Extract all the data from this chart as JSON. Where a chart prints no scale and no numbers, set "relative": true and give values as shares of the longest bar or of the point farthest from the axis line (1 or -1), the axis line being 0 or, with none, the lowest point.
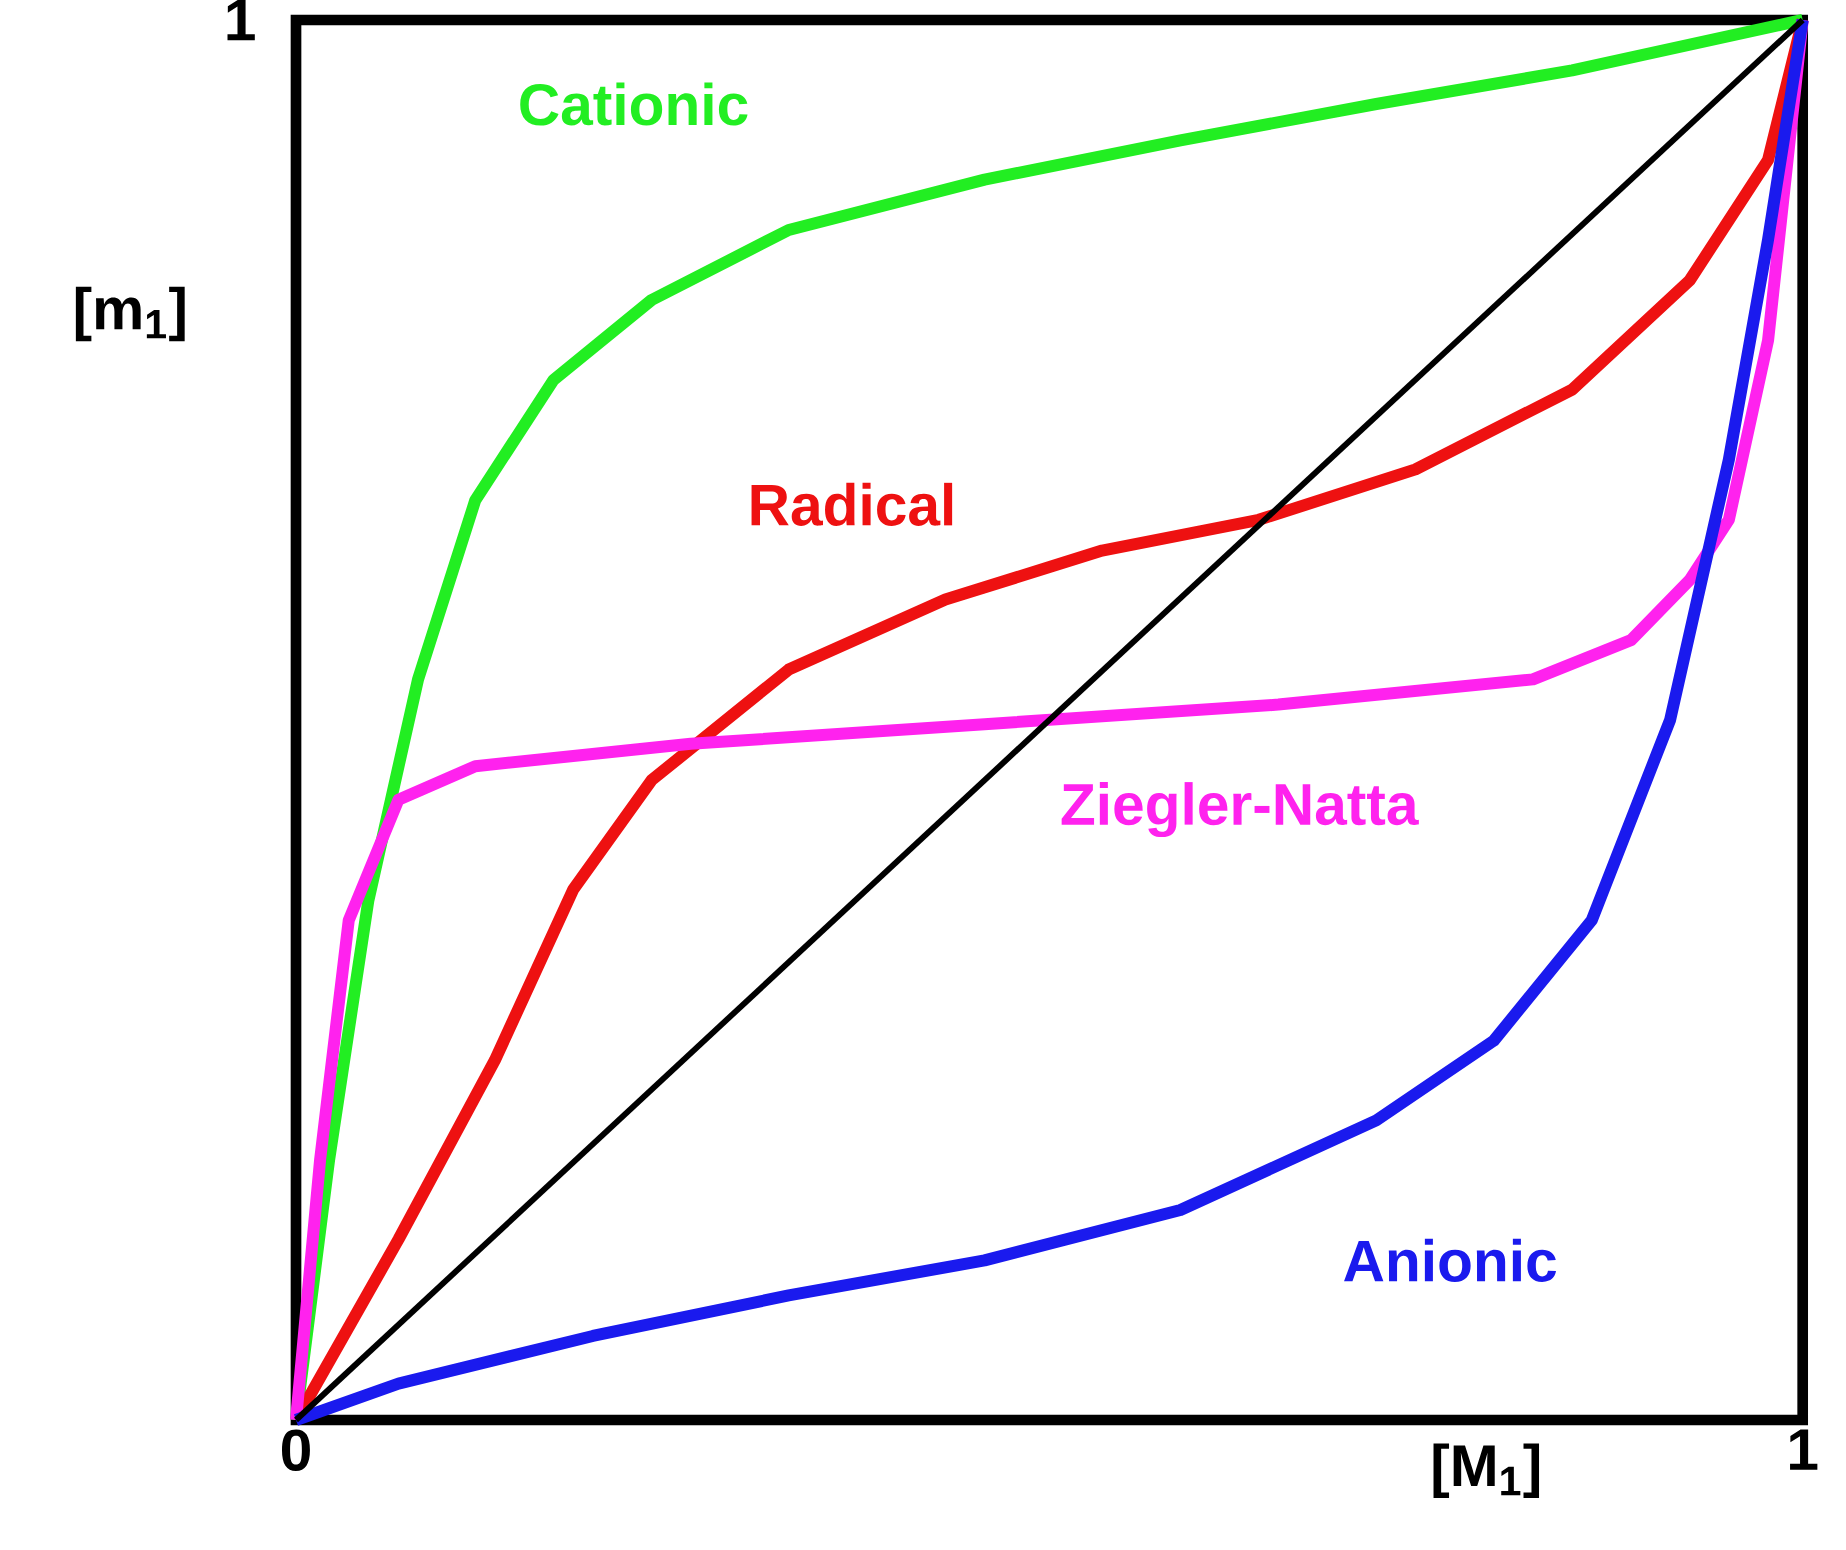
{
  "chart_data": {
    "type": "line",
    "xlabel": "[M$_{1}$]",
    "ylabel": "[m$_{1}$]",
    "xlim": [
      0,
      1
    ],
    "relative": true,
    "annotations": [
      "1"
    ],
    "xticks": [
      {
        "value": 0,
        "label": "0"
      },
      {
        "value": 1,
        "label": "1"
      }
    ],
    "marker": "none",
    "line_style": "solid",
    "series": [
      {
        "name": "Cationic",
        "color": "#22ee22",
        "x": [
          0,
          0.022,
          0.048,
          0.081,
          0.119,
          0.171,
          0.236,
          0.327,
          0.457,
          0.587,
          0.717,
          0.847,
          1
        ],
        "values": [
          0,
          0.186,
          0.371,
          0.529,
          0.657,
          0.743,
          0.8,
          0.85,
          0.886,
          0.914,
          0.94,
          0.964,
          1
        ]
      },
      {
        "name": "Radical",
        "color": "#ee1111",
        "x": [
          0,
          0.068,
          0.132,
          0.184,
          0.236,
          0.327,
          0.431,
          0.535,
          0.639,
          0.743,
          0.847,
          0.925,
          0.977,
          1
        ],
        "values": [
          0,
          0.129,
          0.257,
          0.379,
          0.457,
          0.536,
          0.586,
          0.621,
          0.643,
          0.679,
          0.736,
          0.814,
          0.9,
          1
        ]
      },
      {
        "name": "Ziegler-Natta",
        "color": "#ff22ee",
        "x": [
          0,
          0.016,
          0.035,
          0.068,
          0.119,
          0.262,
          0.457,
          0.652,
          0.821,
          0.886,
          0.925,
          0.951,
          0.977,
          1
        ],
        "values": [
          0,
          0.186,
          0.357,
          0.443,
          0.467,
          0.483,
          0.497,
          0.511,
          0.529,
          0.557,
          0.6,
          0.643,
          0.771,
          1
        ]
      },
      {
        "name": "Anionic",
        "color": "#1a1aee",
        "x": [
          0,
          0.068,
          0.197,
          0.327,
          0.457,
          0.587,
          0.717,
          0.795,
          0.86,
          0.912,
          0.951,
          0.977,
          1
        ],
        "values": [
          0,
          0.026,
          0.06,
          0.089,
          0.114,
          0.15,
          0.214,
          0.271,
          0.357,
          0.5,
          0.686,
          0.843,
          1
        ]
      },
      {
        "color": "#000000",
        "x": [
          0,
          1
        ],
        "values": [
          0,
          1
        ]
      }
    ]
  }
}
